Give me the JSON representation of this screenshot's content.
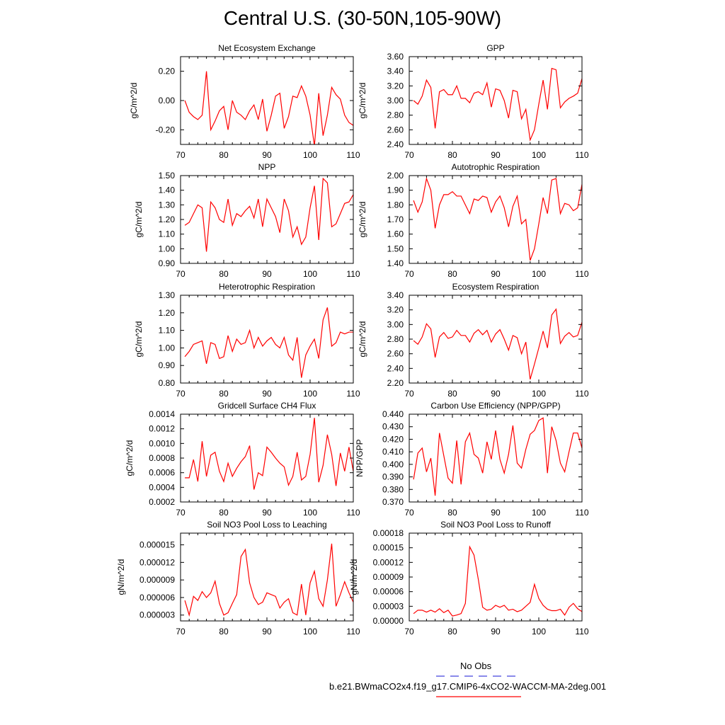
{
  "page_title": "Central U.S. (30-50N,105-90W)",
  "legend": {
    "obs_label": "No Obs",
    "model_label": "b.e21.BWmaCO2x4.f19_g17.CMIP6-4xCO2-WACCM-MA-2deg.001",
    "obs_color": "#4444dd",
    "model_color": "#ff0000"
  },
  "chart_data": [
    {
      "type": "line",
      "title": "Net Ecosystem Exchange",
      "ylabel": "gC/m^2/d",
      "xlim": [
        70,
        110
      ],
      "ylim": [
        -0.3,
        0.3
      ],
      "xticks": [
        70,
        80,
        90,
        100,
        110
      ],
      "yticks": [
        -0.2,
        0.0,
        0.2
      ],
      "ytick_labels": [
        "-0.20",
        "0.00",
        "0.20"
      ],
      "x": [
        71,
        72,
        73,
        74,
        75,
        76,
        77,
        78,
        79,
        80,
        81,
        82,
        83,
        84,
        85,
        86,
        87,
        88,
        89,
        90,
        91,
        92,
        93,
        94,
        95,
        96,
        97,
        98,
        99,
        100,
        101,
        102,
        103,
        104,
        105,
        106,
        107,
        108,
        109,
        110
      ],
      "series": [
        {
          "values": [
            0.0,
            -0.08,
            -0.11,
            -0.13,
            -0.1,
            0.2,
            -0.2,
            -0.14,
            -0.07,
            -0.04,
            -0.2,
            0.0,
            -0.08,
            -0.1,
            -0.13,
            -0.07,
            -0.03,
            -0.13,
            0.01,
            -0.21,
            -0.1,
            0.03,
            0.05,
            -0.19,
            -0.11,
            0.03,
            0.02,
            0.1,
            0.03,
            -0.1,
            -0.31,
            0.05,
            -0.24,
            -0.1,
            0.09,
            0.04,
            0.01,
            -0.1,
            -0.15,
            -0.17
          ]
        }
      ]
    },
    {
      "type": "line",
      "title": "GPP",
      "ylabel": "gC/m^2/d",
      "xlim": [
        70,
        110
      ],
      "ylim": [
        2.4,
        3.6
      ],
      "xticks": [
        70,
        80,
        90,
        100,
        110
      ],
      "yticks": [
        2.4,
        2.6,
        2.8,
        3.0,
        3.2,
        3.4,
        3.6
      ],
      "ytick_labels": [
        "2.40",
        "2.60",
        "2.80",
        "3.00",
        "3.20",
        "3.40",
        "3.60"
      ],
      "x": [
        71,
        72,
        73,
        74,
        75,
        76,
        77,
        78,
        79,
        80,
        81,
        82,
        83,
        84,
        85,
        86,
        87,
        88,
        89,
        90,
        91,
        92,
        93,
        94,
        95,
        96,
        97,
        98,
        99,
        100,
        101,
        102,
        103,
        104,
        105,
        106,
        107,
        108,
        109,
        110
      ],
      "series": [
        {
          "values": [
            3.0,
            2.95,
            3.06,
            3.28,
            3.18,
            2.62,
            3.12,
            3.15,
            3.08,
            3.08,
            3.2,
            3.03,
            3.03,
            2.97,
            3.1,
            3.12,
            3.08,
            3.24,
            2.91,
            3.16,
            3.14,
            3.0,
            2.76,
            3.14,
            3.12,
            2.75,
            2.88,
            2.46,
            2.6,
            2.95,
            3.28,
            2.88,
            3.44,
            3.42,
            2.9,
            2.98,
            3.03,
            3.06,
            3.1,
            3.3
          ]
        }
      ]
    },
    {
      "type": "line",
      "title": "NPP",
      "ylabel": "gC/m^2/d",
      "xlim": [
        70,
        110
      ],
      "ylim": [
        0.9,
        1.5
      ],
      "xticks": [
        70,
        80,
        90,
        100,
        110
      ],
      "yticks": [
        0.9,
        1.0,
        1.1,
        1.2,
        1.3,
        1.4,
        1.5
      ],
      "ytick_labels": [
        "0.90",
        "1.00",
        "1.10",
        "1.20",
        "1.30",
        "1.40",
        "1.50"
      ],
      "x": [
        71,
        72,
        73,
        74,
        75,
        76,
        77,
        78,
        79,
        80,
        81,
        82,
        83,
        84,
        85,
        86,
        87,
        88,
        89,
        90,
        91,
        92,
        93,
        94,
        95,
        96,
        97,
        98,
        99,
        100,
        101,
        102,
        103,
        104,
        105,
        106,
        107,
        108,
        109,
        110
      ],
      "series": [
        {
          "values": [
            1.16,
            1.18,
            1.24,
            1.3,
            1.28,
            0.98,
            1.32,
            1.28,
            1.2,
            1.18,
            1.34,
            1.16,
            1.24,
            1.22,
            1.26,
            1.29,
            1.21,
            1.34,
            1.15,
            1.34,
            1.28,
            1.22,
            1.11,
            1.34,
            1.26,
            1.08,
            1.15,
            1.03,
            1.08,
            1.28,
            1.43,
            1.06,
            1.48,
            1.45,
            1.15,
            1.17,
            1.24,
            1.31,
            1.32,
            1.37
          ]
        }
      ]
    },
    {
      "type": "line",
      "title": "Autotrophic Respiration",
      "ylabel": "gC/m^2/d",
      "xlim": [
        70,
        110
      ],
      "ylim": [
        1.4,
        2.0
      ],
      "xticks": [
        70,
        80,
        90,
        100,
        110
      ],
      "yticks": [
        1.4,
        1.5,
        1.6,
        1.7,
        1.8,
        1.9,
        2.0
      ],
      "ytick_labels": [
        "1.40",
        "1.50",
        "1.60",
        "1.70",
        "1.80",
        "1.90",
        "2.00"
      ],
      "x": [
        71,
        72,
        73,
        74,
        75,
        76,
        77,
        78,
        79,
        80,
        81,
        82,
        83,
        84,
        85,
        86,
        87,
        88,
        89,
        90,
        91,
        92,
        93,
        94,
        95,
        96,
        97,
        98,
        99,
        100,
        101,
        102,
        103,
        104,
        105,
        106,
        107,
        108,
        109,
        110
      ],
      "series": [
        {
          "values": [
            1.83,
            1.75,
            1.82,
            1.98,
            1.9,
            1.64,
            1.8,
            1.87,
            1.87,
            1.89,
            1.86,
            1.86,
            1.8,
            1.74,
            1.84,
            1.83,
            1.86,
            1.85,
            1.75,
            1.82,
            1.86,
            1.78,
            1.65,
            1.79,
            1.86,
            1.67,
            1.7,
            1.42,
            1.5,
            1.67,
            1.85,
            1.74,
            1.97,
            1.98,
            1.74,
            1.81,
            1.8,
            1.76,
            1.78,
            1.94
          ]
        }
      ]
    },
    {
      "type": "line",
      "title": "Heterotrophic Respiration",
      "ylabel": "gC/m^2/d",
      "xlim": [
        70,
        110
      ],
      "ylim": [
        0.8,
        1.3
      ],
      "xticks": [
        70,
        80,
        90,
        100,
        110
      ],
      "yticks": [
        0.8,
        0.9,
        1.0,
        1.1,
        1.2,
        1.3
      ],
      "ytick_labels": [
        "0.80",
        "0.90",
        "1.00",
        "1.10",
        "1.20",
        "1.30"
      ],
      "x": [
        71,
        72,
        73,
        74,
        75,
        76,
        77,
        78,
        79,
        80,
        81,
        82,
        83,
        84,
        85,
        86,
        87,
        88,
        89,
        90,
        91,
        92,
        93,
        94,
        95,
        96,
        97,
        98,
        99,
        100,
        101,
        102,
        103,
        104,
        105,
        106,
        107,
        108,
        109,
        110
      ],
      "series": [
        {
          "values": [
            0.95,
            0.98,
            1.02,
            1.03,
            1.04,
            0.91,
            1.03,
            1.02,
            0.94,
            0.95,
            1.07,
            0.98,
            1.05,
            1.02,
            1.03,
            1.1,
            1.0,
            1.06,
            1.01,
            1.04,
            1.06,
            1.02,
            1.0,
            1.06,
            0.96,
            0.93,
            1.06,
            0.83,
            0.96,
            1.01,
            1.05,
            0.94,
            1.16,
            1.23,
            1.01,
            1.03,
            1.09,
            1.08,
            1.09,
            1.09
          ]
        }
      ]
    },
    {
      "type": "line",
      "title": "Ecosystem Respiration",
      "ylabel": "gC/m^2/d",
      "xlim": [
        70,
        110
      ],
      "ylim": [
        2.2,
        3.4
      ],
      "xticks": [
        70,
        80,
        90,
        100,
        110
      ],
      "yticks": [
        2.2,
        2.4,
        2.6,
        2.8,
        3.0,
        3.2,
        3.4
      ],
      "ytick_labels": [
        "2.20",
        "2.40",
        "2.60",
        "2.80",
        "3.00",
        "3.20",
        "3.40"
      ],
      "x": [
        71,
        72,
        73,
        74,
        75,
        76,
        77,
        78,
        79,
        80,
        81,
        82,
        83,
        84,
        85,
        86,
        87,
        88,
        89,
        90,
        91,
        92,
        93,
        94,
        95,
        96,
        97,
        98,
        99,
        100,
        101,
        102,
        103,
        104,
        105,
        106,
        107,
        108,
        109,
        110
      ],
      "series": [
        {
          "values": [
            2.78,
            2.73,
            2.83,
            3.01,
            2.94,
            2.55,
            2.83,
            2.89,
            2.81,
            2.83,
            2.92,
            2.85,
            2.85,
            2.76,
            2.88,
            2.93,
            2.86,
            2.92,
            2.76,
            2.87,
            2.93,
            2.8,
            2.65,
            2.85,
            2.82,
            2.6,
            2.76,
            2.25,
            2.46,
            2.68,
            2.91,
            2.68,
            3.13,
            3.21,
            2.74,
            2.84,
            2.89,
            2.83,
            2.85,
            3.03
          ]
        }
      ]
    },
    {
      "type": "line",
      "title": "Gridcell Surface CH4 Flux",
      "ylabel": "gC/m^2/d",
      "xlim": [
        70,
        110
      ],
      "ylim": [
        0.0002,
        0.0014
      ],
      "xticks": [
        70,
        80,
        90,
        100,
        110
      ],
      "yticks": [
        0.0002,
        0.0004,
        0.0006,
        0.0008,
        0.001,
        0.0012,
        0.0014
      ],
      "ytick_labels": [
        "0.0002",
        "0.0004",
        "0.0006",
        "0.0008",
        "0.0010",
        "0.0012",
        "0.0014"
      ],
      "x": [
        71,
        72,
        73,
        74,
        75,
        76,
        77,
        78,
        79,
        80,
        81,
        82,
        83,
        84,
        85,
        86,
        87,
        88,
        89,
        90,
        91,
        92,
        93,
        94,
        95,
        96,
        97,
        98,
        99,
        100,
        101,
        102,
        103,
        104,
        105,
        106,
        107,
        108,
        109,
        110
      ],
      "series": [
        {
          "values": [
            0.00053,
            0.00053,
            0.00078,
            0.00048,
            0.00103,
            0.00055,
            0.00084,
            0.00088,
            0.00062,
            0.00048,
            0.00073,
            0.00055,
            0.00066,
            0.00075,
            0.00082,
            0.00097,
            0.00037,
            0.0006,
            0.00056,
            0.00095,
            0.00088,
            0.0008,
            0.00073,
            0.00068,
            0.00043,
            0.00055,
            0.00088,
            0.0005,
            0.00055,
            0.00085,
            0.00135,
            0.00047,
            0.0007,
            0.00112,
            0.00085,
            0.00042,
            0.00087,
            0.00062,
            0.00095,
            0.00062
          ]
        }
      ]
    },
    {
      "type": "line",
      "title": "Carbon Use Efficiency (NPP/GPP)",
      "ylabel": "NPP/GPP",
      "xlim": [
        70,
        110
      ],
      "ylim": [
        0.37,
        0.44
      ],
      "xticks": [
        70,
        80,
        90,
        100,
        110
      ],
      "yticks": [
        0.37,
        0.38,
        0.39,
        0.4,
        0.41,
        0.42,
        0.43,
        0.44
      ],
      "ytick_labels": [
        "0.370",
        "0.380",
        "0.390",
        "0.400",
        "0.410",
        "0.420",
        "0.430",
        "0.440"
      ],
      "x": [
        71,
        72,
        73,
        74,
        75,
        76,
        77,
        78,
        79,
        80,
        81,
        82,
        83,
        84,
        85,
        86,
        87,
        88,
        89,
        90,
        91,
        92,
        93,
        94,
        95,
        96,
        97,
        98,
        99,
        100,
        101,
        102,
        103,
        104,
        105,
        106,
        107,
        108,
        109,
        110
      ],
      "series": [
        {
          "values": [
            0.388,
            0.409,
            0.413,
            0.394,
            0.405,
            0.375,
            0.425,
            0.407,
            0.389,
            0.385,
            0.419,
            0.384,
            0.418,
            0.425,
            0.408,
            0.405,
            0.393,
            0.418,
            0.404,
            0.427,
            0.404,
            0.393,
            0.408,
            0.431,
            0.401,
            0.397,
            0.412,
            0.424,
            0.427,
            0.435,
            0.437,
            0.393,
            0.43,
            0.419,
            0.401,
            0.394,
            0.41,
            0.425,
            0.425,
            0.413
          ]
        }
      ]
    },
    {
      "type": "line",
      "title": "Soil NO3 Pool Loss to Leaching",
      "ylabel": "gN/m^2/d",
      "xlim": [
        70,
        110
      ],
      "ylim": [
        2e-06,
        1.7e-05
      ],
      "xticks": [
        70,
        80,
        90,
        100,
        110
      ],
      "yticks": [
        3e-06,
        6e-06,
        9e-06,
        1.2e-05,
        1.5e-05
      ],
      "ytick_labels": [
        "0.000003",
        "0.000006",
        "0.000009",
        "0.000012",
        "0.000015"
      ],
      "x": [
        71,
        72,
        73,
        74,
        75,
        76,
        77,
        78,
        79,
        80,
        81,
        82,
        83,
        84,
        85,
        86,
        87,
        88,
        89,
        90,
        91,
        92,
        93,
        94,
        95,
        96,
        97,
        98,
        99,
        100,
        101,
        102,
        103,
        104,
        105,
        106,
        107,
        108,
        109,
        110
      ],
      "series": [
        {
          "values": [
            5.5e-06,
            3e-06,
            6.2e-06,
            5.5e-06,
            7e-06,
            6e-06,
            6.8e-06,
            8.8e-06,
            5e-06,
            3e-06,
            3.4e-06,
            5e-06,
            6.5e-06,
            1.3e-05,
            1.42e-05,
            8.5e-06,
            6e-06,
            4.8e-06,
            5.2e-06,
            6.8e-06,
            6.5e-06,
            6.2e-06,
            4.2e-06,
            5.2e-06,
            5.8e-06,
            3.4e-06,
            3e-06,
            8.3e-06,
            3e-06,
            8.5e-06,
            1.05e-05,
            5.8e-06,
            4.5e-06,
            9e-06,
            1.52e-05,
            4.5e-06,
            6.5e-06,
            8.7e-06,
            6.8e-06,
            5.2e-06
          ]
        }
      ]
    },
    {
      "type": "line",
      "title": "Soil NO3 Pool Loss to Runoff",
      "ylabel": "gN/m^2/d",
      "xlim": [
        70,
        110
      ],
      "ylim": [
        0.0,
        0.00018
      ],
      "xticks": [
        70,
        80,
        90,
        100,
        110
      ],
      "yticks": [
        0.0,
        3e-05,
        6e-05,
        9e-05,
        0.00012,
        0.00015,
        0.00018
      ],
      "ytick_labels": [
        "0.00000",
        "0.00003",
        "0.00006",
        "0.00009",
        "0.00012",
        "0.00015",
        "0.00018"
      ],
      "x": [
        71,
        72,
        73,
        74,
        75,
        76,
        77,
        78,
        79,
        80,
        81,
        82,
        83,
        84,
        85,
        86,
        87,
        88,
        89,
        90,
        91,
        92,
        93,
        94,
        95,
        96,
        97,
        98,
        99,
        100,
        101,
        102,
        103,
        104,
        105,
        106,
        107,
        108,
        109,
        110
      ],
      "series": [
        {
          "values": [
            1.5e-05,
            2.2e-05,
            2.2e-05,
            1.8e-05,
            2.2e-05,
            1.8e-05,
            2.5e-05,
            1.7e-05,
            2.2e-05,
            1e-05,
            1.2e-05,
            1.5e-05,
            3.6e-05,
            0.000152,
            0.000135,
            8.5e-05,
            2.8e-05,
            2.2e-05,
            2.4e-05,
            3.2e-05,
            2.8e-05,
            3.2e-05,
            2.2e-05,
            2.4e-05,
            1.9e-05,
            2.2e-05,
            3e-05,
            3.8e-05,
            7.5e-05,
            4.6e-05,
            3.2e-05,
            2.4e-05,
            2.1e-05,
            2.1e-05,
            2.4e-05,
            1.2e-05,
            2.8e-05,
            3.6e-05,
            2.5e-05,
            1.9e-05
          ]
        }
      ]
    }
  ]
}
